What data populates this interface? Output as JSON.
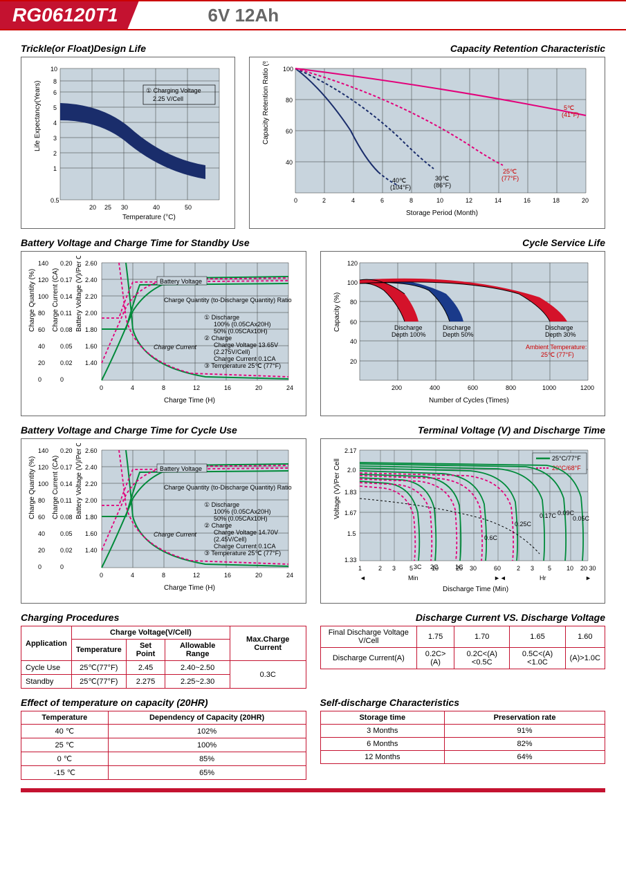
{
  "header": {
    "model": "RG06120T1",
    "spec": "6V  12Ah"
  },
  "charts": {
    "trickle": {
      "title": "Trickle(or Float)Design Life",
      "ylabel": "Life Expectancy(Years)",
      "xlabel": "Temperature (°C)",
      "yticks": [
        "0.5",
        "1",
        "2",
        "3",
        "4",
        "5",
        "6",
        "8",
        "10"
      ],
      "xticks": [
        "20",
        "25",
        "30",
        "40",
        "50"
      ],
      "note_circle": "①",
      "note1": "Charging Voltage",
      "note2": "2.25 V/Cell",
      "band_color": "#1a2d6b",
      "bg": "#c8d4dd",
      "grid": "#444"
    },
    "retention": {
      "title": "Capacity Retention Characteristic",
      "ylabel": "Capacity Retention Ratio (%)",
      "xlabel": "Storage Period (Month)",
      "yticks": [
        "40",
        "60",
        "80",
        "100"
      ],
      "xticks": [
        "0",
        "2",
        "4",
        "6",
        "8",
        "10",
        "12",
        "14",
        "16",
        "18",
        "20"
      ],
      "series": [
        {
          "label": "40℃",
          "sub": "(104°F)",
          "color": "#1a2d6b",
          "dash": false
        },
        {
          "label": "30℃",
          "sub": "(86°F)",
          "color": "#1a2d6b",
          "dash": true
        },
        {
          "label": "25℃",
          "sub": "(77°F)",
          "color": "#e2007a",
          "dash": true
        },
        {
          "label": "5℃",
          "sub": "(41°F)",
          "color": "#e2007a",
          "dash": false
        }
      ]
    },
    "standby_charge": {
      "title": "Battery Voltage and Charge Time for Standby Use",
      "y1label": "Charge Quantity (%)",
      "y2label": "Charge Current (CA)",
      "y3label": "Battery Voltage (V)/Per Cell",
      "xlabel": "Charge Time (H)",
      "y1ticks": [
        "0",
        "20",
        "40",
        "60",
        "80",
        "100",
        "120",
        "140"
      ],
      "y2ticks": [
        "0",
        "0.02",
        "0.05",
        "0.08",
        "0.11",
        "0.14",
        "0.17",
        "0.20"
      ],
      "y3ticks": [
        "",
        "1.40",
        "1.60",
        "1.80",
        "2.00",
        "2.20",
        "2.40",
        "2.60"
      ],
      "xticks": [
        "0",
        "4",
        "8",
        "12",
        "16",
        "20",
        "24"
      ],
      "label_bv": "Battery Voltage",
      "label_cq": "Charge Quantity (to-Discharge Quantity) Ratio",
      "label_cc": "Charge Current",
      "notes1": "① Discharge",
      "notes1a": "100% (0.05CAx20H)",
      "notes1b": "50% (0.05CAx10H)",
      "notes2": "② Charge",
      "notes2a": "Charge Voltage 13.65V",
      "notes2b": "(2.275V/Cell)",
      "notes2c": "Charge Current 0.1CA",
      "notes3": "③ Temperature 25℃ (77°F)",
      "green": "#008a3a",
      "pink": "#e2007a"
    },
    "cycle_life": {
      "title": "Cycle Service Life",
      "ylabel": "Capacity (%)",
      "xlabel": "Number of Cycles (Times)",
      "yticks": [
        "20",
        "40",
        "60",
        "80",
        "100",
        "120"
      ],
      "xticks": [
        "200",
        "400",
        "600",
        "800",
        "1000",
        "1200"
      ],
      "label100": "Discharge",
      "sub100": "Depth 100%",
      "label50": "Discharge",
      "sub50": "Depth 50%",
      "label30": "Discharge",
      "sub30": "Depth 30%",
      "ambient": "Ambient Temperature:",
      "ambient2": "25℃ (77°F)",
      "red": "#d4122a",
      "blue": "#1a3a8a"
    },
    "cycle_charge": {
      "title": "Battery Voltage and Charge Time for Cycle Use",
      "notes2a": "Charge Voltage 14.70V",
      "notes2b": "(2.45V/Cell)"
    },
    "terminal": {
      "title": "Terminal Voltage (V) and Discharge Time",
      "ylabel": "Voltage (V)/Per Cell",
      "xlabel": "Discharge Time (Min)",
      "yticks": [
        "1.33",
        "1.5",
        "1.67",
        "1.83",
        "2.0",
        "2.17"
      ],
      "xticks1": [
        "1",
        "2",
        "3",
        "5",
        "10",
        "20",
        "30",
        "60"
      ],
      "xticks2": [
        "2",
        "3",
        "5",
        "10",
        "20",
        "30"
      ],
      "min_label": "Min",
      "hr_label": "Hr",
      "legend1": "25°C/77°F",
      "legend2": "20°C/68°F",
      "curves": [
        "3C",
        "2C",
        "1C",
        "0.6C",
        "0.25C",
        "0.17C",
        "0.09C",
        "0.05C"
      ],
      "green": "#008a3a",
      "pink": "#e2007a"
    }
  },
  "tables": {
    "charging": {
      "title": "Charging Procedures",
      "h_app": "Application",
      "h_cv": "Charge Voltage(V/Cell)",
      "h_max": "Max.Charge Current",
      "h_temp": "Temperature",
      "h_set": "Set Point",
      "h_range": "Allowable Range",
      "r1": [
        "Cycle Use",
        "25℃(77°F)",
        "2.45",
        "2.40~2.50"
      ],
      "r2": [
        "Standby",
        "25℃(77°F)",
        "2.275",
        "2.25~2.30"
      ],
      "max": "0.3C"
    },
    "discharge": {
      "title": "Discharge Current VS. Discharge Voltage",
      "h1": "Final Discharge Voltage V/Cell",
      "h2": "Discharge Current(A)",
      "v": [
        "1.75",
        "1.70",
        "1.65",
        "1.60"
      ],
      "c": [
        "0.2C>(A)",
        "0.2C<(A)<0.5C",
        "0.5C<(A)<1.0C",
        "(A)>1.0C"
      ]
    },
    "temp_effect": {
      "title": "Effect of temperature on capacity (20HR)",
      "h1": "Temperature",
      "h2": "Dependency of Capacity (20HR)",
      "rows": [
        [
          "40 ℃",
          "102%"
        ],
        [
          "25 ℃",
          "100%"
        ],
        [
          "0 ℃",
          "85%"
        ],
        [
          "-15 ℃",
          "65%"
        ]
      ]
    },
    "self_discharge": {
      "title": "Self-discharge Characteristics",
      "h1": "Storage time",
      "h2": "Preservation rate",
      "rows": [
        [
          "3 Months",
          "91%"
        ],
        [
          "6 Months",
          "82%"
        ],
        [
          "12 Months",
          "64%"
        ]
      ]
    }
  }
}
